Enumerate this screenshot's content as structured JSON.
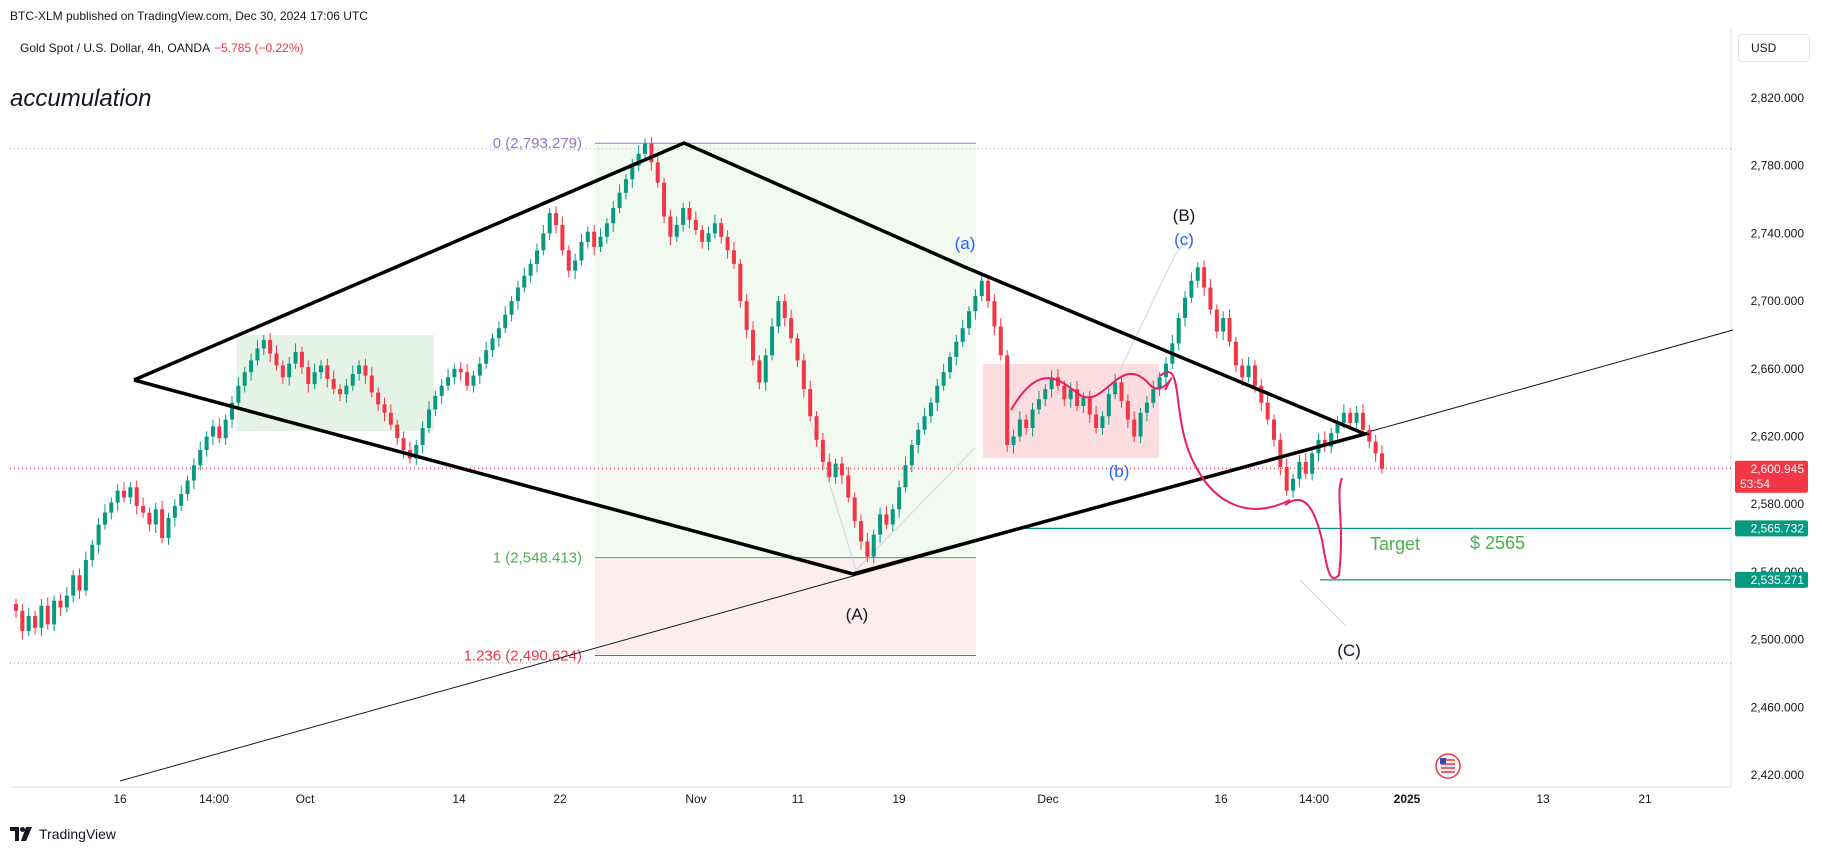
{
  "header": {
    "published": "BTC-XLM published on TradingView.com, Dec 30, 2024 17:06 UTC",
    "symbol": "Gold Spot / U.S. Dollar, 4h, OANDA",
    "change": "−5.785 (−0.22%)",
    "currency": "USD"
  },
  "brand": {
    "name": "TradingView",
    "icon": "tradingview-logo-icon"
  },
  "chart_data": {
    "type": "candlestick",
    "title": "accumulation",
    "xlabel": "",
    "ylabel": "",
    "ylim": [
      2405,
      2835
    ],
    "grid": false,
    "y_ticks": [
      "2,820.000",
      "2,780.000",
      "2,740.000",
      "2,700.000",
      "2,660.000",
      "2,620.000",
      "2,580.000",
      "2,540.000",
      "2,500.000",
      "2,460.000",
      "2,420.000"
    ],
    "y_tick_values": [
      2820,
      2780,
      2740,
      2700,
      2660,
      2620,
      2580,
      2540,
      2500,
      2460,
      2420
    ],
    "x_ticks": [
      "16",
      "14:00",
      "Oct",
      "14",
      "22",
      "Nov",
      "11",
      "19",
      "Dec",
      "16",
      "14:00",
      "2025",
      "13",
      "21"
    ],
    "price_labels": [
      {
        "value": 2600.945,
        "text": "2,600.945",
        "subtext": "53:54",
        "color": "#f23645"
      },
      {
        "value": 2565.732,
        "text": "2,565.732",
        "color": "#089981"
      },
      {
        "value": 2535.271,
        "text": "2,535.271",
        "color": "#089981"
      }
    ],
    "fib_levels": [
      {
        "label": "0 (2,793.279)",
        "value": 2793.279,
        "color": "#9575cd"
      },
      {
        "label": "1 (2,548.413)",
        "value": 2548.413,
        "color": "#4caf50"
      },
      {
        "label": "1.236 (2,490.624)",
        "value": 2490.624,
        "color": "#f23645"
      }
    ],
    "wave_labels": [
      {
        "text": "(a)",
        "color": "#2962ff"
      },
      {
        "text": "(B)",
        "color": "#131722"
      },
      {
        "text": "(c)",
        "color": "#2962ff"
      },
      {
        "text": "(b)",
        "color": "#2962ff"
      },
      {
        "text": "(A)",
        "color": "#131722"
      },
      {
        "text": "(C)",
        "color": "#131722"
      }
    ],
    "annotations": [
      {
        "text": "Target",
        "color": "#4caf50"
      },
      {
        "text": "$ 2565",
        "color": "#4caf50"
      }
    ],
    "series": [
      {
        "name": "",
        "close": [
          2517,
          2505,
          2514,
          2507,
          2520,
          2509,
          2523,
          2519,
          2526,
          2538,
          2529,
          2547,
          2556,
          2568,
          2575,
          2581,
          2588,
          2584,
          2590,
          2579,
          2575,
          2568,
          2577,
          2560,
          2572,
          2579,
          2586,
          2594,
          2603,
          2612,
          2620,
          2626,
          2619,
          2630,
          2640,
          2650,
          2658,
          2665,
          2672,
          2677,
          2669,
          2662,
          2655,
          2663,
          2670,
          2661,
          2651,
          2658,
          2662,
          2654,
          2648,
          2645,
          2650,
          2657,
          2662,
          2656,
          2646,
          2639,
          2634,
          2627,
          2619,
          2612,
          2607,
          2615,
          2625,
          2636,
          2644,
          2650,
          2655,
          2660,
          2658,
          2650,
          2656,
          2663,
          2671,
          2678,
          2684,
          2692,
          2700,
          2708,
          2715,
          2722,
          2730,
          2740,
          2752,
          2745,
          2730,
          2718,
          2724,
          2735,
          2741,
          2732,
          2738,
          2746,
          2755,
          2764,
          2772,
          2780,
          2787,
          2793,
          2782,
          2770,
          2750,
          2738,
          2745,
          2755,
          2748,
          2742,
          2735,
          2740,
          2746,
          2738,
          2730,
          2722,
          2700,
          2683,
          2665,
          2652,
          2668,
          2685,
          2700,
          2690,
          2678,
          2665,
          2648,
          2632,
          2618,
          2605,
          2596,
          2604,
          2597,
          2584,
          2570,
          2558,
          2549,
          2562,
          2574,
          2568,
          2577,
          2590,
          2603,
          2615,
          2624,
          2632,
          2640,
          2650,
          2658,
          2667,
          2676,
          2684,
          2694,
          2703,
          2712,
          2700,
          2685,
          2668,
          2615,
          2620,
          2630,
          2625,
          2636,
          2642,
          2648,
          2655,
          2650,
          2642,
          2648,
          2638,
          2643,
          2633,
          2625,
          2632,
          2645,
          2652,
          2641,
          2630,
          2620,
          2634,
          2640,
          2648,
          2655,
          2663,
          2675,
          2690,
          2702,
          2712,
          2720,
          2708,
          2695,
          2682,
          2690,
          2676,
          2662,
          2655,
          2662,
          2650,
          2640,
          2630,
          2618,
          2602,
          2588,
          2595,
          2605,
          2598,
          2610,
          2618,
          2614,
          2622,
          2628,
          2634,
          2628,
          2634,
          2624,
          2617,
          2610,
          2601
        ]
      }
    ]
  }
}
